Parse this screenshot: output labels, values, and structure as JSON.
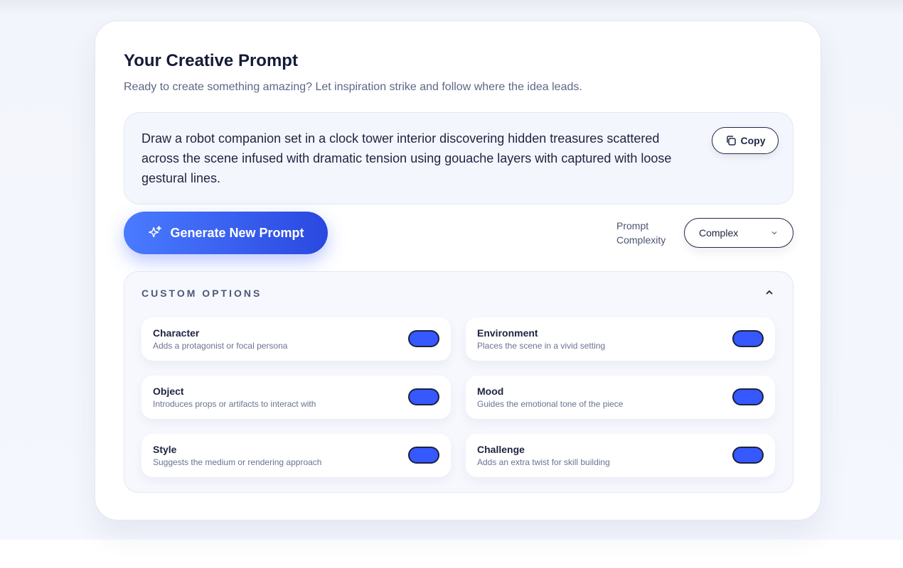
{
  "title": "Your Creative Prompt",
  "subtitle": "Ready to create something amazing? Let inspiration strike and follow where the idea leads.",
  "prompt_text": "Draw a robot companion set in a clock tower interior discovering hidden treasures scattered across the scene infused with dramatic tension using gouache layers with captured with loose gestural lines.",
  "copy_label": "Copy",
  "generate_label": "Generate New Prompt",
  "complexity": {
    "label": "Prompt Complexity",
    "selected": "Complex"
  },
  "custom_options": {
    "title": "CUSTOM OPTIONS",
    "expanded": true,
    "items": [
      {
        "title": "Character",
        "desc": "Adds a protagonist or focal persona",
        "on": true
      },
      {
        "title": "Environment",
        "desc": "Places the scene in a vivid setting",
        "on": true
      },
      {
        "title": "Object",
        "desc": "Introduces props or artifacts to interact with",
        "on": true
      },
      {
        "title": "Mood",
        "desc": "Guides the emotional tone of the piece",
        "on": true
      },
      {
        "title": "Style",
        "desc": "Suggests the medium or rendering approach",
        "on": true
      },
      {
        "title": "Challenge",
        "desc": "Adds an extra twist for skill building",
        "on": true
      }
    ]
  },
  "colors": {
    "accent": "#3558ff",
    "text": "#141b38"
  }
}
